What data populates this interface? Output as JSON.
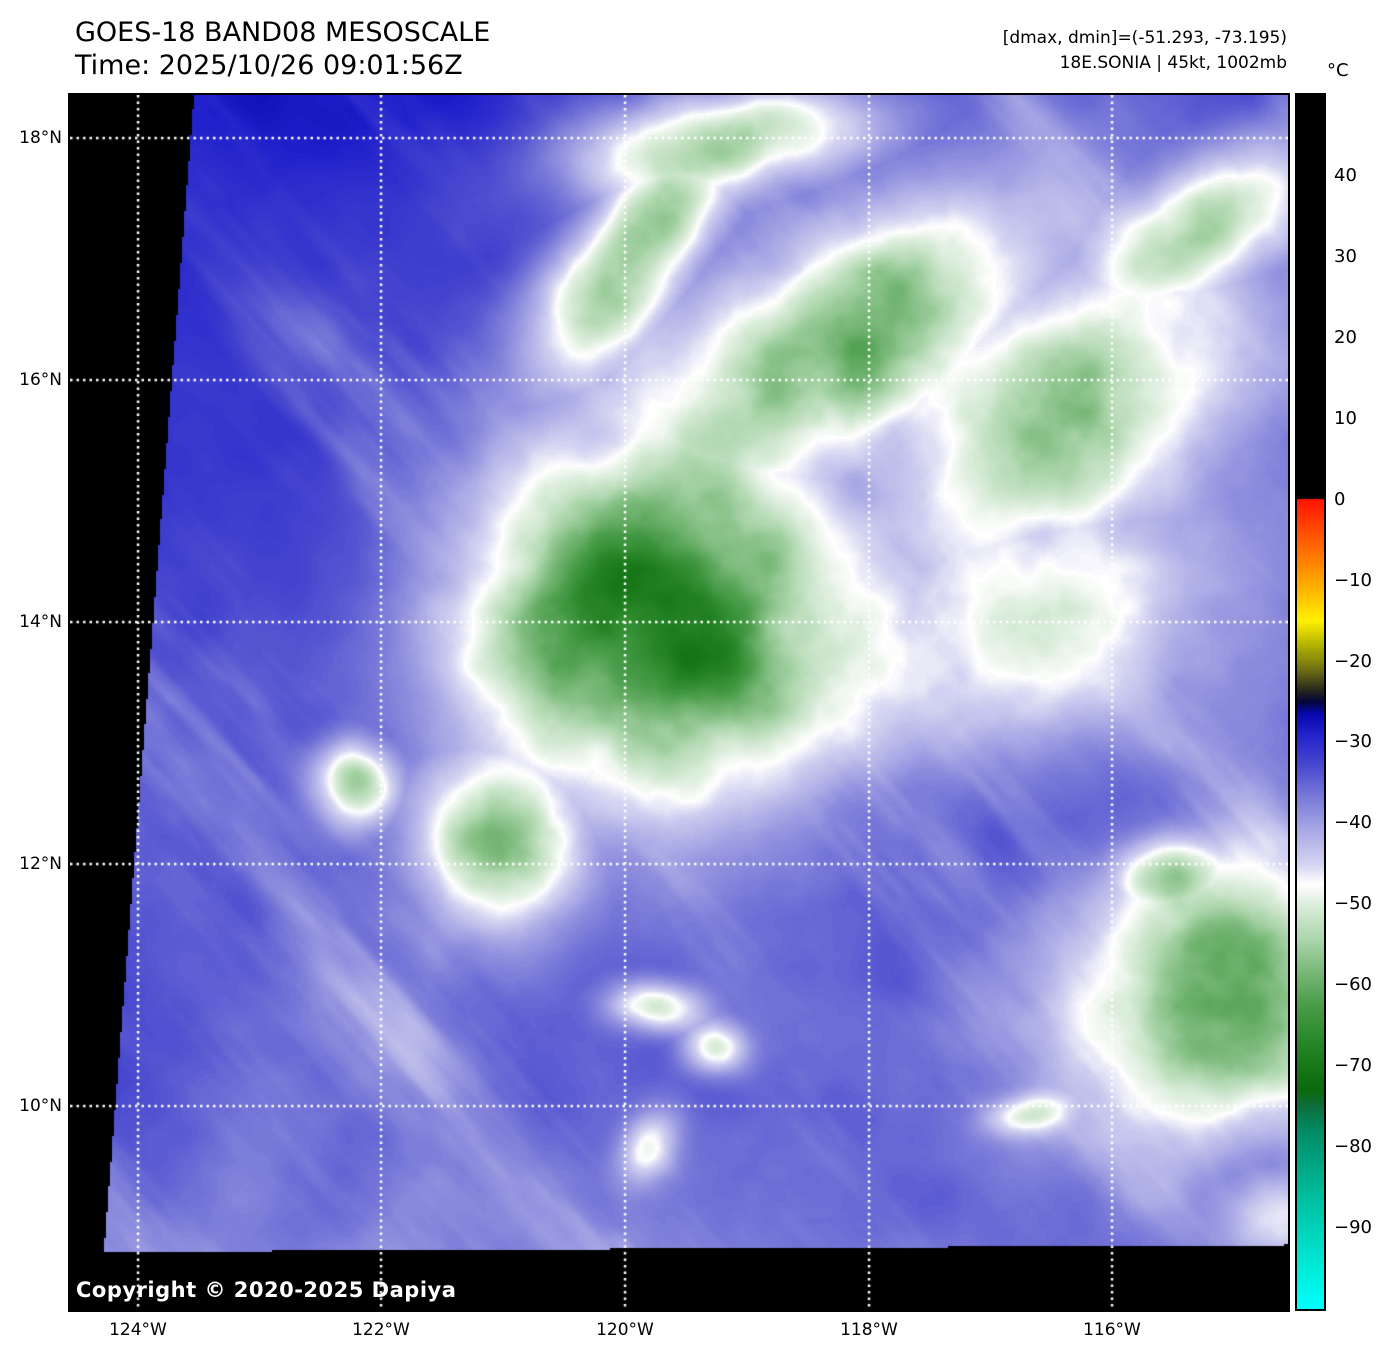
{
  "header": {
    "title": "GOES-18 BAND08 MESOSCALE",
    "time": "Time: 2025/10/26 09:01:56Z",
    "dmax_dmin": "[dmax, dmin]=(-51.293, -73.195)",
    "storm_info": "18E.SONIA | 45kt, 1002mb"
  },
  "map": {
    "copyright": "Copyright © 2020-2025 Dapiya",
    "lat_labels": [
      "18°N",
      "16°N",
      "14°N",
      "12°N",
      "10°N"
    ],
    "lon_labels": [
      "124°W",
      "122°W",
      "120°W",
      "118°W",
      "116°W"
    ],
    "gridline_color": "#ffffff",
    "no_data_color": "#000000"
  },
  "colorbar": {
    "unit": "°C",
    "tick_labels": [
      "40",
      "30",
      "20",
      "10",
      "0",
      "−10",
      "−20",
      "−30",
      "−40",
      "−50",
      "−60",
      "−70",
      "−80",
      "−90"
    ],
    "tick_values": [
      40,
      30,
      20,
      10,
      0,
      -10,
      -20,
      -30,
      -40,
      -50,
      -60,
      -70,
      -80,
      -90
    ],
    "range_top_c": 50,
    "range_bottom_c": -100,
    "stops": [
      [
        50,
        "#000000"
      ],
      [
        0.001,
        "#000000"
      ],
      [
        0,
        "#ff1400"
      ],
      [
        -6,
        "#ff6a00"
      ],
      [
        -11,
        "#ffb400"
      ],
      [
        -15,
        "#fff000"
      ],
      [
        -18,
        "#b4b400"
      ],
      [
        -21,
        "#6e6e14"
      ],
      [
        -23.5,
        "#28281e"
      ],
      [
        -25,
        "#05053c"
      ],
      [
        -26.5,
        "#0808b0"
      ],
      [
        -29,
        "#2222cc"
      ],
      [
        -33,
        "#4b4bd0"
      ],
      [
        -37,
        "#7d7dda"
      ],
      [
        -41,
        "#aaaae6"
      ],
      [
        -45,
        "#d4d4f2"
      ],
      [
        -47.5,
        "#ffffff"
      ],
      [
        -50,
        "#ddeedd"
      ],
      [
        -54,
        "#b0d8b0"
      ],
      [
        -58,
        "#7dbb7d"
      ],
      [
        -62,
        "#4fa04f"
      ],
      [
        -66,
        "#2f8c2f"
      ],
      [
        -70,
        "#187818"
      ],
      [
        -73,
        "#0c690c"
      ],
      [
        -75,
        "#0c6e3c"
      ],
      [
        -78,
        "#008c64"
      ],
      [
        -82,
        "#00a582"
      ],
      [
        -86,
        "#00bd9e"
      ],
      [
        -90,
        "#00d2b9"
      ],
      [
        -95,
        "#00ecd9"
      ],
      [
        -100,
        "#00ffff"
      ]
    ]
  }
}
